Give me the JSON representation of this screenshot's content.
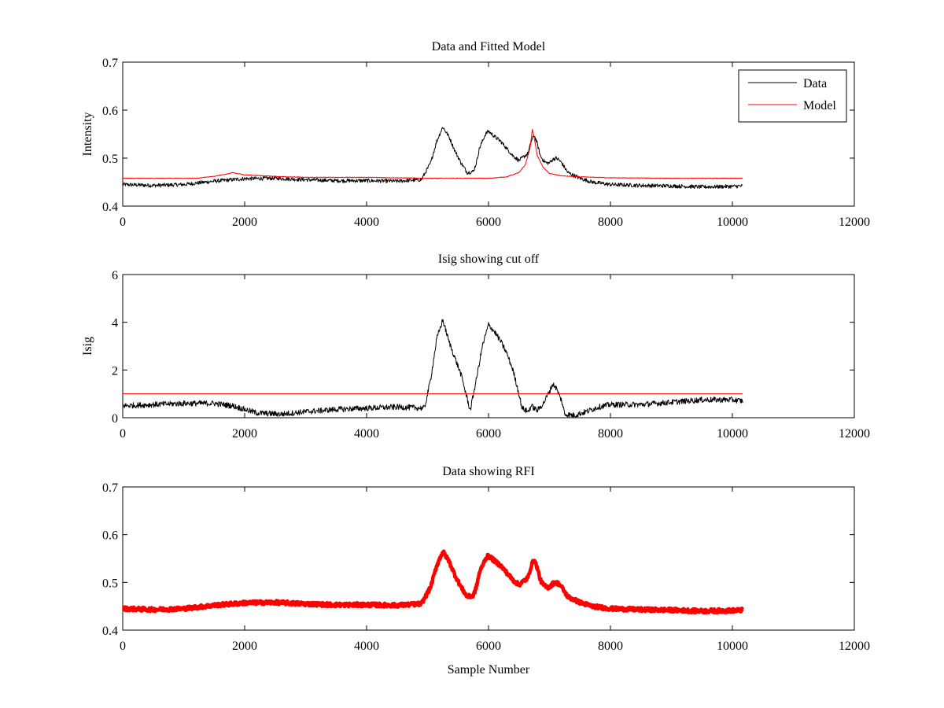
{
  "chart_data": [
    {
      "type": "line",
      "title": "Data and Fitted Model",
      "xlabel": "",
      "ylabel": "Intensity",
      "xlim": [
        0,
        12000
      ],
      "ylim": [
        0.4,
        0.7
      ],
      "xticks": [
        0,
        2000,
        4000,
        6000,
        8000,
        10000,
        12000
      ],
      "yticks": [
        0.4,
        0.5,
        0.6,
        0.7
      ],
      "grid": false,
      "legend": {
        "position": "top-right",
        "entries": [
          "Data",
          "Model"
        ]
      },
      "noise": 0.004,
      "series": [
        {
          "name": "Data",
          "color": "#000000",
          "x": [
            0,
            500,
            1000,
            1500,
            2000,
            2500,
            3000,
            3500,
            4000,
            4500,
            4900,
            5050,
            5150,
            5250,
            5350,
            5450,
            5550,
            5650,
            5750,
            5800,
            5850,
            5900,
            5950,
            6000,
            6100,
            6200,
            6300,
            6400,
            6500,
            6550,
            6600,
            6650,
            6700,
            6750,
            6800,
            6850,
            6900,
            6950,
            7000,
            7050,
            7100,
            7150,
            7200,
            7300,
            7500,
            7700,
            8000,
            8500,
            9000,
            9500,
            10000,
            10170
          ],
          "y": [
            0.445,
            0.443,
            0.445,
            0.452,
            0.457,
            0.458,
            0.455,
            0.453,
            0.453,
            0.452,
            0.455,
            0.49,
            0.535,
            0.565,
            0.545,
            0.515,
            0.49,
            0.47,
            0.472,
            0.49,
            0.52,
            0.535,
            0.55,
            0.556,
            0.545,
            0.535,
            0.52,
            0.505,
            0.495,
            0.5,
            0.505,
            0.51,
            0.535,
            0.548,
            0.53,
            0.505,
            0.495,
            0.49,
            0.49,
            0.497,
            0.5,
            0.497,
            0.49,
            0.47,
            0.458,
            0.45,
            0.445,
            0.443,
            0.442,
            0.44,
            0.441,
            0.442
          ]
        },
        {
          "name": "Model",
          "color": "#ff0000",
          "x": [
            0,
            1200,
            1500,
            1750,
            1800,
            2000,
            2500,
            3000,
            4000,
            5000,
            6000,
            6300,
            6500,
            6600,
            6680,
            6720,
            6760,
            6800,
            6900,
            7000,
            7200,
            7500,
            8000,
            9000,
            10170
          ],
          "y": [
            0.458,
            0.458,
            0.462,
            0.468,
            0.47,
            0.465,
            0.462,
            0.46,
            0.46,
            0.458,
            0.458,
            0.461,
            0.47,
            0.485,
            0.52,
            0.56,
            0.535,
            0.505,
            0.48,
            0.468,
            0.463,
            0.461,
            0.459,
            0.458,
            0.458
          ]
        }
      ]
    },
    {
      "type": "line",
      "title": "Isig showing cut off",
      "xlabel": "",
      "ylabel": "Isig",
      "xlim": [
        0,
        12000
      ],
      "ylim": [
        0,
        6
      ],
      "xticks": [
        0,
        2000,
        4000,
        6000,
        8000,
        10000,
        12000
      ],
      "yticks": [
        0,
        2,
        4,
        6
      ],
      "grid": false,
      "noise": 0.12,
      "series": [
        {
          "color": "#000000",
          "x": [
            0,
            500,
            1000,
            1500,
            1800,
            2200,
            2600,
            3000,
            3500,
            4000,
            4500,
            4950,
            5050,
            5150,
            5250,
            5350,
            5450,
            5550,
            5650,
            5700,
            5800,
            5900,
            6000,
            6100,
            6200,
            6300,
            6400,
            6500,
            6550,
            6650,
            6700,
            6800,
            6900,
            7000,
            7050,
            7100,
            7200,
            7250,
            7400,
            7600,
            7800,
            8000,
            8500,
            9000,
            9500,
            10000,
            10170
          ],
          "y": [
            0.5,
            0.55,
            0.6,
            0.6,
            0.5,
            0.2,
            0.15,
            0.25,
            0.35,
            0.4,
            0.45,
            0.4,
            1.6,
            3.3,
            4.1,
            3.2,
            2.5,
            1.8,
            0.8,
            0.3,
            1.6,
            3.0,
            3.9,
            3.6,
            3.2,
            2.7,
            2.0,
            1.0,
            0.4,
            0.25,
            0.5,
            0.3,
            0.6,
            1.1,
            1.4,
            1.3,
            0.7,
            0.15,
            0.1,
            0.25,
            0.45,
            0.55,
            0.55,
            0.65,
            0.75,
            0.75,
            0.7
          ]
        },
        {
          "color": "#ff0000",
          "x": [
            0,
            10170
          ],
          "y": [
            1,
            1
          ]
        }
      ]
    },
    {
      "type": "line",
      "title": "Data showing RFI",
      "xlabel": "Sample Number",
      "ylabel": "",
      "xlim": [
        0,
        12000
      ],
      "ylim": [
        0.4,
        0.7
      ],
      "xticks": [
        0,
        2000,
        4000,
        6000,
        8000,
        10000,
        12000
      ],
      "yticks": [
        0.4,
        0.5,
        0.6,
        0.7
      ],
      "grid": false,
      "noise": 0.004,
      "series": [
        {
          "color": "#ff0000",
          "x": [
            0,
            500,
            1000,
            1500,
            2000,
            2500,
            3000,
            3500,
            4000,
            4500,
            4900,
            5050,
            5150,
            5250,
            5350,
            5450,
            5550,
            5650,
            5750,
            5800,
            5850,
            5900,
            5950,
            6000,
            6100,
            6200,
            6300,
            6400,
            6500,
            6550,
            6600,
            6650,
            6700,
            6750,
            6800,
            6850,
            6900,
            6950,
            7000,
            7050,
            7100,
            7150,
            7200,
            7300,
            7500,
            7700,
            8000,
            8500,
            9000,
            9500,
            10000,
            10170
          ],
          "y": [
            0.445,
            0.443,
            0.445,
            0.452,
            0.457,
            0.458,
            0.455,
            0.453,
            0.453,
            0.452,
            0.455,
            0.49,
            0.535,
            0.565,
            0.545,
            0.515,
            0.49,
            0.47,
            0.472,
            0.49,
            0.52,
            0.535,
            0.55,
            0.556,
            0.545,
            0.535,
            0.52,
            0.505,
            0.495,
            0.5,
            0.505,
            0.51,
            0.535,
            0.548,
            0.53,
            0.505,
            0.495,
            0.49,
            0.49,
            0.497,
            0.5,
            0.497,
            0.49,
            0.47,
            0.458,
            0.45,
            0.445,
            0.443,
            0.442,
            0.44,
            0.441,
            0.442
          ]
        }
      ]
    }
  ]
}
